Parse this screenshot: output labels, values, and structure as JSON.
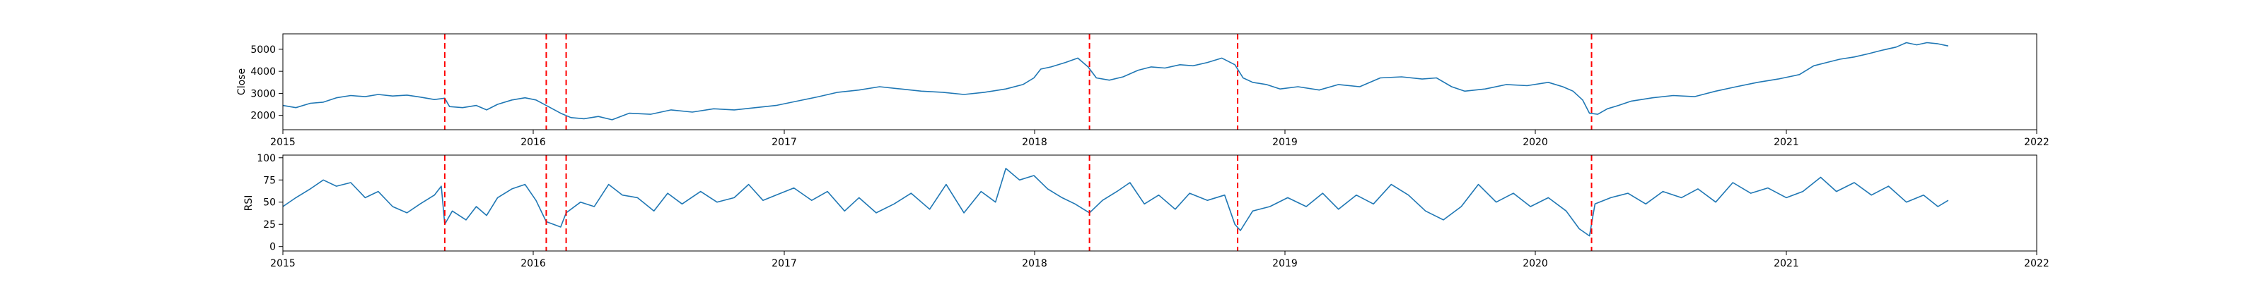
{
  "chart_data": [
    {
      "type": "line",
      "ylabel": "Close",
      "xlim": [
        "2015-01-01",
        "2022-01-01"
      ],
      "ylim": [
        1350,
        5700
      ],
      "yticks": [
        2000,
        3000,
        4000,
        5000
      ],
      "xticks": [
        "2015",
        "2016",
        "2017",
        "2018",
        "2019",
        "2020",
        "2021",
        "2022"
      ],
      "grid": false,
      "series": [
        {
          "color": "#1f77b4",
          "points": [
            [
              "2015-01-01",
              2450
            ],
            [
              "2015-01-20",
              2350
            ],
            [
              "2015-02-10",
              2550
            ],
            [
              "2015-03-01",
              2600
            ],
            [
              "2015-03-20",
              2800
            ],
            [
              "2015-04-10",
              2900
            ],
            [
              "2015-05-01",
              2850
            ],
            [
              "2015-05-20",
              2950
            ],
            [
              "2015-06-10",
              2880
            ],
            [
              "2015-07-01",
              2920
            ],
            [
              "2015-07-20",
              2830
            ],
            [
              "2015-08-10",
              2720
            ],
            [
              "2015-08-25",
              2780
            ],
            [
              "2015-09-01",
              2400
            ],
            [
              "2015-09-20",
              2350
            ],
            [
              "2015-10-10",
              2450
            ],
            [
              "2015-10-25",
              2250
            ],
            [
              "2015-11-10",
              2500
            ],
            [
              "2015-12-01",
              2700
            ],
            [
              "2015-12-20",
              2800
            ],
            [
              "2016-01-05",
              2700
            ],
            [
              "2016-01-20",
              2450
            ],
            [
              "2016-02-10",
              2100
            ],
            [
              "2016-02-25",
              1900
            ],
            [
              "2016-03-15",
              1850
            ],
            [
              "2016-04-05",
              1950
            ],
            [
              "2016-04-25",
              1800
            ],
            [
              "2016-05-20",
              2100
            ],
            [
              "2016-06-20",
              2050
            ],
            [
              "2016-07-20",
              2250
            ],
            [
              "2016-08-20",
              2150
            ],
            [
              "2016-09-20",
              2300
            ],
            [
              "2016-10-20",
              2250
            ],
            [
              "2016-11-20",
              2350
            ],
            [
              "2016-12-20",
              2450
            ],
            [
              "2017-01-20",
              2650
            ],
            [
              "2017-02-20",
              2850
            ],
            [
              "2017-03-20",
              3050
            ],
            [
              "2017-04-20",
              3150
            ],
            [
              "2017-05-20",
              3300
            ],
            [
              "2017-06-20",
              3200
            ],
            [
              "2017-07-20",
              3100
            ],
            [
              "2017-08-20",
              3050
            ],
            [
              "2017-09-20",
              2950
            ],
            [
              "2017-10-20",
              3050
            ],
            [
              "2017-11-20",
              3200
            ],
            [
              "2017-12-15",
              3400
            ],
            [
              "2017-12-31",
              3700
            ],
            [
              "2018-01-10",
              4100
            ],
            [
              "2018-01-25",
              4200
            ],
            [
              "2018-02-15",
              4400
            ],
            [
              "2018-03-05",
              4600
            ],
            [
              "2018-03-20",
              4200
            ],
            [
              "2018-04-01",
              3700
            ],
            [
              "2018-04-20",
              3600
            ],
            [
              "2018-05-10",
              3750
            ],
            [
              "2018-06-01",
              4050
            ],
            [
              "2018-06-20",
              4200
            ],
            [
              "2018-07-10",
              4150
            ],
            [
              "2018-08-01",
              4300
            ],
            [
              "2018-08-20",
              4250
            ],
            [
              "2018-09-10",
              4400
            ],
            [
              "2018-10-01",
              4600
            ],
            [
              "2018-10-20",
              4300
            ],
            [
              "2018-11-01",
              3700
            ],
            [
              "2018-11-15",
              3500
            ],
            [
              "2018-12-05",
              3400
            ],
            [
              "2018-12-25",
              3200
            ],
            [
              "2019-01-20",
              3300
            ],
            [
              "2019-02-20",
              3150
            ],
            [
              "2019-03-20",
              3400
            ],
            [
              "2019-04-20",
              3300
            ],
            [
              "2019-05-20",
              3700
            ],
            [
              "2019-06-20",
              3750
            ],
            [
              "2019-07-20",
              3650
            ],
            [
              "2019-08-10",
              3700
            ],
            [
              "2019-09-01",
              3300
            ],
            [
              "2019-09-20",
              3100
            ],
            [
              "2019-10-20",
              3200
            ],
            [
              "2019-11-20",
              3400
            ],
            [
              "2019-12-20",
              3350
            ],
            [
              "2020-01-20",
              3500
            ],
            [
              "2020-02-10",
              3300
            ],
            [
              "2020-02-25",
              3100
            ],
            [
              "2020-03-10",
              2700
            ],
            [
              "2020-03-20",
              2100
            ],
            [
              "2020-04-01",
              2050
            ],
            [
              "2020-04-15",
              2300
            ],
            [
              "2020-05-01",
              2450
            ],
            [
              "2020-05-20",
              2650
            ],
            [
              "2020-06-20",
              2800
            ],
            [
              "2020-07-20",
              2900
            ],
            [
              "2020-08-20",
              2850
            ],
            [
              "2020-09-20",
              3100
            ],
            [
              "2020-10-20",
              3300
            ],
            [
              "2020-11-20",
              3500
            ],
            [
              "2020-12-20",
              3650
            ],
            [
              "2021-01-20",
              3850
            ],
            [
              "2021-02-10",
              4250
            ],
            [
              "2021-03-01",
              4400
            ],
            [
              "2021-03-20",
              4550
            ],
            [
              "2021-04-10",
              4650
            ],
            [
              "2021-05-01",
              4800
            ],
            [
              "2021-05-20",
              4950
            ],
            [
              "2021-06-10",
              5100
            ],
            [
              "2021-06-25",
              5300
            ],
            [
              "2021-07-10",
              5200
            ],
            [
              "2021-07-25",
              5300
            ],
            [
              "2021-08-10",
              5250
            ],
            [
              "2021-08-25",
              5150
            ]
          ]
        }
      ],
      "events": {
        "color": "#ff0000",
        "dates": [
          "2015-08-25",
          "2016-01-20",
          "2016-02-18",
          "2018-03-22",
          "2018-10-24",
          "2020-03-23"
        ]
      }
    },
    {
      "type": "line",
      "ylabel": "RSI",
      "xlim": [
        "2015-01-01",
        "2022-01-01"
      ],
      "ylim": [
        -5,
        103
      ],
      "yticks": [
        0,
        25,
        50,
        75,
        100
      ],
      "xticks": [
        "2015",
        "2016",
        "2017",
        "2018",
        "2019",
        "2020",
        "2021",
        "2022"
      ],
      "grid": false,
      "series": [
        {
          "color": "#1f77b4",
          "points": [
            [
              "2015-01-01",
              45
            ],
            [
              "2015-01-20",
              55
            ],
            [
              "2015-02-10",
              65
            ],
            [
              "2015-03-01",
              75
            ],
            [
              "2015-03-20",
              68
            ],
            [
              "2015-04-10",
              72
            ],
            [
              "2015-05-01",
              55
            ],
            [
              "2015-05-20",
              62
            ],
            [
              "2015-06-10",
              45
            ],
            [
              "2015-07-01",
              38
            ],
            [
              "2015-07-20",
              48
            ],
            [
              "2015-08-10",
              58
            ],
            [
              "2015-08-20",
              68
            ],
            [
              "2015-08-25",
              25
            ],
            [
              "2015-09-05",
              40
            ],
            [
              "2015-09-25",
              30
            ],
            [
              "2015-10-10",
              45
            ],
            [
              "2015-10-25",
              35
            ],
            [
              "2015-11-10",
              55
            ],
            [
              "2015-12-01",
              65
            ],
            [
              "2015-12-20",
              70
            ],
            [
              "2016-01-05",
              52
            ],
            [
              "2016-01-20",
              28
            ],
            [
              "2016-02-10",
              22
            ],
            [
              "2016-02-18",
              38
            ],
            [
              "2016-03-10",
              50
            ],
            [
              "2016-03-30",
              45
            ],
            [
              "2016-04-20",
              70
            ],
            [
              "2016-05-10",
              58
            ],
            [
              "2016-06-01",
              55
            ],
            [
              "2016-06-25",
              40
            ],
            [
              "2016-07-15",
              60
            ],
            [
              "2016-08-05",
              48
            ],
            [
              "2016-09-01",
              62
            ],
            [
              "2016-09-25",
              50
            ],
            [
              "2016-10-20",
              55
            ],
            [
              "2016-11-10",
              70
            ],
            [
              "2016-12-01",
              52
            ],
            [
              "2016-12-20",
              58
            ],
            [
              "2017-01-15",
              66
            ],
            [
              "2017-02-10",
              52
            ],
            [
              "2017-03-05",
              62
            ],
            [
              "2017-03-30",
              40
            ],
            [
              "2017-04-20",
              55
            ],
            [
              "2017-05-15",
              38
            ],
            [
              "2017-06-10",
              48
            ],
            [
              "2017-07-05",
              60
            ],
            [
              "2017-08-01",
              42
            ],
            [
              "2017-08-25",
              70
            ],
            [
              "2017-09-20",
              38
            ],
            [
              "2017-10-15",
              62
            ],
            [
              "2017-11-05",
              50
            ],
            [
              "2017-11-20",
              88
            ],
            [
              "2017-12-10",
              75
            ],
            [
              "2017-12-31",
              80
            ],
            [
              "2018-01-20",
              65
            ],
            [
              "2018-02-10",
              55
            ],
            [
              "2018-03-01",
              48
            ],
            [
              "2018-03-22",
              38
            ],
            [
              "2018-04-10",
              52
            ],
            [
              "2018-05-01",
              62
            ],
            [
              "2018-05-20",
              72
            ],
            [
              "2018-06-10",
              48
            ],
            [
              "2018-07-01",
              58
            ],
            [
              "2018-07-25",
              42
            ],
            [
              "2018-08-15",
              60
            ],
            [
              "2018-09-10",
              52
            ],
            [
              "2018-10-05",
              58
            ],
            [
              "2018-10-20",
              25
            ],
            [
              "2018-10-28",
              18
            ],
            [
              "2018-11-15",
              40
            ],
            [
              "2018-12-10",
              45
            ],
            [
              "2019-01-05",
              55
            ],
            [
              "2019-02-01",
              45
            ],
            [
              "2019-02-25",
              60
            ],
            [
              "2019-03-20",
              42
            ],
            [
              "2019-04-15",
              58
            ],
            [
              "2019-05-10",
              48
            ],
            [
              "2019-06-05",
              70
            ],
            [
              "2019-06-30",
              58
            ],
            [
              "2019-07-25",
              40
            ],
            [
              "2019-08-20",
              30
            ],
            [
              "2019-09-15",
              45
            ],
            [
              "2019-10-10",
              70
            ],
            [
              "2019-11-05",
              50
            ],
            [
              "2019-11-30",
              60
            ],
            [
              "2019-12-25",
              45
            ],
            [
              "2020-01-20",
              55
            ],
            [
              "2020-02-15",
              40
            ],
            [
              "2020-03-05",
              20
            ],
            [
              "2020-03-20",
              12
            ],
            [
              "2020-03-28",
              48
            ],
            [
              "2020-04-20",
              55
            ],
            [
              "2020-05-15",
              60
            ],
            [
              "2020-06-10",
              48
            ],
            [
              "2020-07-05",
              62
            ],
            [
              "2020-08-01",
              55
            ],
            [
              "2020-08-25",
              65
            ],
            [
              "2020-09-20",
              50
            ],
            [
              "2020-10-15",
              72
            ],
            [
              "2020-11-10",
              60
            ],
            [
              "2020-12-05",
              66
            ],
            [
              "2021-01-01",
              55
            ],
            [
              "2021-01-25",
              62
            ],
            [
              "2021-02-20",
              78
            ],
            [
              "2021-03-15",
              62
            ],
            [
              "2021-04-10",
              72
            ],
            [
              "2021-05-05",
              58
            ],
            [
              "2021-05-30",
              68
            ],
            [
              "2021-06-25",
              50
            ],
            [
              "2021-07-20",
              58
            ],
            [
              "2021-08-10",
              45
            ],
            [
              "2021-08-25",
              52
            ]
          ]
        }
      ],
      "events": {
        "color": "#ff0000",
        "dates": [
          "2015-08-25",
          "2016-01-20",
          "2016-02-18",
          "2018-03-22",
          "2018-10-24",
          "2020-03-23"
        ]
      }
    }
  ]
}
